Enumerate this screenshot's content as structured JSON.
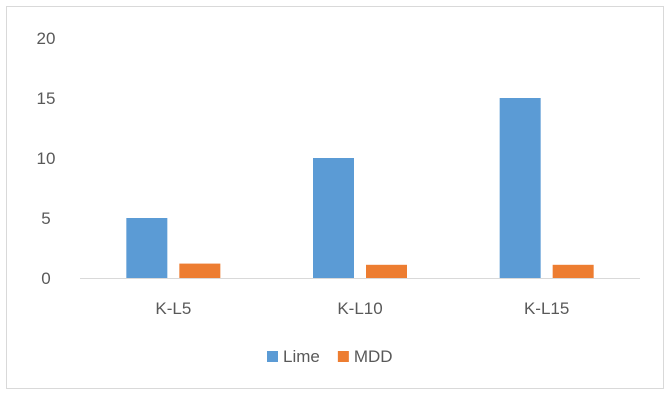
{
  "chart_data": {
    "type": "bar",
    "categories": [
      "K-L5",
      "K-L10",
      "K-L15"
    ],
    "series": [
      {
        "name": "Lime",
        "values": [
          5,
          10,
          15
        ],
        "color": "#5b9bd5"
      },
      {
        "name": "MDD",
        "values": [
          1.2,
          1.1,
          1.1
        ],
        "color": "#ed7d31"
      }
    ],
    "ylim": [
      0,
      20
    ],
    "yticks": [
      0,
      5,
      10,
      15,
      20
    ],
    "grid": false,
    "legend_position": "bottom",
    "title": "",
    "xlabel": "",
    "ylabel": ""
  }
}
